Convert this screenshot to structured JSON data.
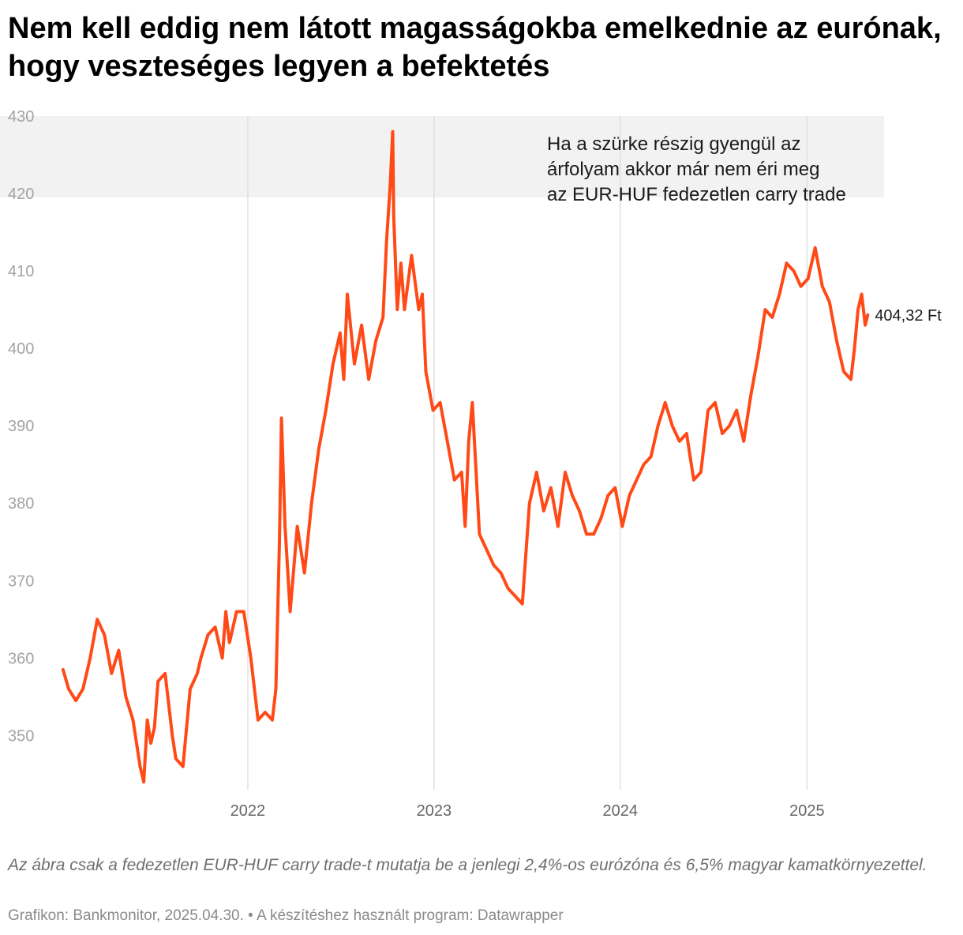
{
  "title": "Nem kell eddig nem látott magasságokba emelkednie az eurónak, hogy veszteséges legyen a befektetés",
  "note": "Az ábra csak a fedezetlen EUR-HUF carry trade-t mutatja be a jenlegi 2,4%-os eurózóna és 6,5% magyar kamatkörnyezettel.",
  "credit": "Grafikon: Bankmonitor, 2025.04.30. • A készítéshez használt program: Datawrapper",
  "colors": {
    "line": "#ff4a17",
    "band": "#f2f2f2",
    "grid": "#e0e0e0"
  },
  "chart_data": {
    "type": "line",
    "x_unit": "date",
    "xlim": [
      "2021-01-01",
      "2025-06-01"
    ],
    "ylim": [
      343,
      430
    ],
    "y_ticks": [
      350,
      360,
      370,
      380,
      390,
      400,
      410,
      420,
      430
    ],
    "y_tick_labels": [
      "350",
      "360",
      "370",
      "380",
      "390",
      "400",
      "410",
      "420",
      "430"
    ],
    "x_ticks": [
      "2022-01-01",
      "2023-01-01",
      "2024-01-01",
      "2025-01-01"
    ],
    "x_tick_labels": [
      "2022",
      "2023",
      "2024",
      "2025"
    ],
    "grid": "vertical lines at year starts",
    "shaded_band": {
      "y_from": 419.5,
      "y_to": 430
    },
    "annotation": {
      "lines": [
        "Ha a szürke részig gyengül az",
        "árfolyam akkor már nem éri meg",
        "az EUR-HUF fedezetlen carry trade"
      ],
      "placement": "top-right, inside shaded band"
    },
    "end_label": "404,32 Ft",
    "series": [
      {
        "x": [
          "2021-01-04",
          "2021-01-15",
          "2021-01-29",
          "2021-02-12",
          "2021-02-26",
          "2021-03-12",
          "2021-03-26",
          "2021-04-09",
          "2021-04-23",
          "2021-05-07",
          "2021-05-21",
          "2021-06-04",
          "2021-06-11",
          "2021-06-18",
          "2021-06-25",
          "2021-07-02",
          "2021-07-09",
          "2021-07-23",
          "2021-08-06",
          "2021-08-13",
          "2021-08-27",
          "2021-09-10",
          "2021-09-24",
          "2021-10-01",
          "2021-10-15",
          "2021-10-29",
          "2021-11-12",
          "2021-11-19",
          "2021-11-26",
          "2021-12-10",
          "2021-12-24",
          "2022-01-07",
          "2022-01-21",
          "2022-02-04",
          "2022-02-18",
          "2022-02-25",
          "2022-03-04",
          "2022-03-08",
          "2022-03-15",
          "2022-03-25",
          "2022-04-08",
          "2022-04-22",
          "2022-05-06",
          "2022-05-20",
          "2022-06-03",
          "2022-06-17",
          "2022-07-01",
          "2022-07-08",
          "2022-07-15",
          "2022-07-29",
          "2022-08-12",
          "2022-08-26",
          "2022-09-09",
          "2022-09-23",
          "2022-09-30",
          "2022-10-07",
          "2022-10-12",
          "2022-10-14",
          "2022-10-21",
          "2022-10-28",
          "2022-11-04",
          "2022-11-18",
          "2022-12-02",
          "2022-12-09",
          "2022-12-16",
          "2022-12-30",
          "2023-01-13",
          "2023-01-27",
          "2023-02-10",
          "2023-02-24",
          "2023-03-03",
          "2023-03-10",
          "2023-03-17",
          "2023-03-31",
          "2023-04-14",
          "2023-04-28",
          "2023-05-12",
          "2023-05-26",
          "2023-06-09",
          "2023-06-23",
          "2023-07-07",
          "2023-07-21",
          "2023-08-04",
          "2023-08-18",
          "2023-09-01",
          "2023-09-15",
          "2023-09-29",
          "2023-10-13",
          "2023-10-27",
          "2023-11-10",
          "2023-11-24",
          "2023-12-08",
          "2023-12-22",
          "2024-01-05",
          "2024-01-19",
          "2024-02-02",
          "2024-02-16",
          "2024-03-01",
          "2024-03-15",
          "2024-03-29",
          "2024-04-12",
          "2024-04-26",
          "2024-05-10",
          "2024-05-24",
          "2024-06-07",
          "2024-06-21",
          "2024-07-05",
          "2024-07-19",
          "2024-08-02",
          "2024-08-16",
          "2024-08-30",
          "2024-09-13",
          "2024-09-27",
          "2024-10-11",
          "2024-10-25",
          "2024-11-08",
          "2024-11-22",
          "2024-12-06",
          "2024-12-20",
          "2025-01-03",
          "2025-01-17",
          "2025-01-31",
          "2025-02-14",
          "2025-02-28",
          "2025-03-14",
          "2025-03-28",
          "2025-04-04",
          "2025-04-11",
          "2025-04-18",
          "2025-04-25",
          "2025-04-30"
        ],
        "y": [
          358.5,
          356.0,
          354.5,
          356.0,
          360.0,
          365.0,
          363.0,
          358.0,
          361.0,
          355.0,
          352.0,
          346.0,
          344.0,
          352.0,
          349.0,
          351.0,
          357.0,
          358.0,
          350.0,
          347.0,
          346.0,
          356.0,
          358.0,
          360.0,
          363.0,
          364.0,
          360.0,
          366.0,
          362.0,
          366.0,
          366.0,
          360.0,
          352.0,
          353.0,
          352.0,
          356.0,
          375.0,
          391.0,
          377.0,
          366.0,
          377.0,
          371.0,
          380.0,
          387.0,
          392.0,
          398.0,
          402.0,
          396.0,
          407.0,
          398.0,
          403.0,
          396.0,
          401.0,
          404.0,
          414.0,
          421.0,
          428.0,
          417.0,
          405.0,
          411.0,
          405.0,
          412.0,
          405.0,
          407.0,
          397.0,
          392.0,
          393.0,
          388.0,
          383.0,
          384.0,
          377.0,
          388.0,
          393.0,
          376.0,
          374.0,
          372.0,
          371.0,
          369.0,
          368.0,
          367.0,
          380.0,
          384.0,
          379.0,
          382.0,
          377.0,
          384.0,
          381.0,
          379.0,
          376.0,
          376.0,
          378.0,
          381.0,
          382.0,
          377.0,
          381.0,
          383.0,
          385.0,
          386.0,
          390.0,
          393.0,
          390.0,
          388.0,
          389.0,
          383.0,
          384.0,
          392.0,
          393.0,
          389.0,
          390.0,
          392.0,
          388.0,
          394.0,
          399.0,
          405.0,
          404.0,
          407.0,
          411.0,
          410.0,
          408.0,
          409.0,
          413.0,
          408.0,
          406.0,
          401.0,
          397.0,
          396.0,
          400.0,
          405.0,
          407.0,
          403.0,
          404.32
        ]
      }
    ]
  }
}
